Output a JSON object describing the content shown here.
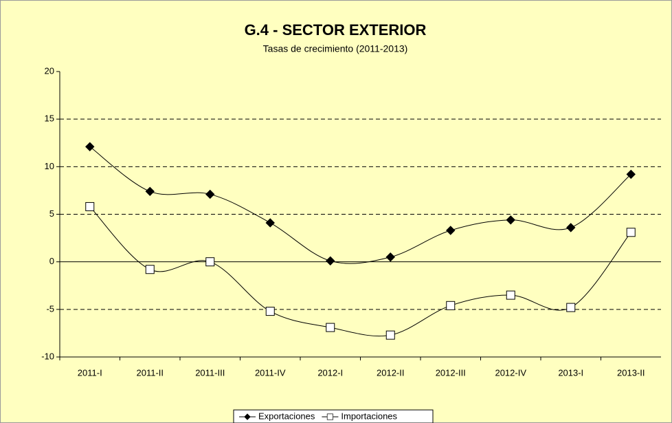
{
  "chart_data": {
    "type": "line",
    "title": "G.4 - SECTOR EXTERIOR",
    "subtitle": "Tasas de crecimiento (2011-2013)",
    "categories": [
      "2011-I",
      "2011-II",
      "2011-III",
      "2011-IV",
      "2012-I",
      "2012-II",
      "2012-III",
      "2012-IV",
      "2013-I",
      "2013-II"
    ],
    "series": [
      {
        "name": "Exportaciones",
        "color": "#000000",
        "marker": "diamond",
        "values": [
          12.1,
          7.4,
          7.1,
          4.1,
          0.1,
          0.5,
          3.3,
          4.4,
          3.6,
          9.2
        ]
      },
      {
        "name": "Importaciones",
        "color": "#000000",
        "marker": "square",
        "values": [
          5.8,
          -0.8,
          0,
          -5.2,
          -6.9,
          -7.7,
          -4.6,
          -3.5,
          -4.8,
          3.1
        ]
      }
    ],
    "ylim": [
      -10,
      20
    ],
    "yticks": [
      -10,
      -5,
      0,
      5,
      10,
      15,
      20
    ],
    "grid": true,
    "legend": "bottom"
  }
}
